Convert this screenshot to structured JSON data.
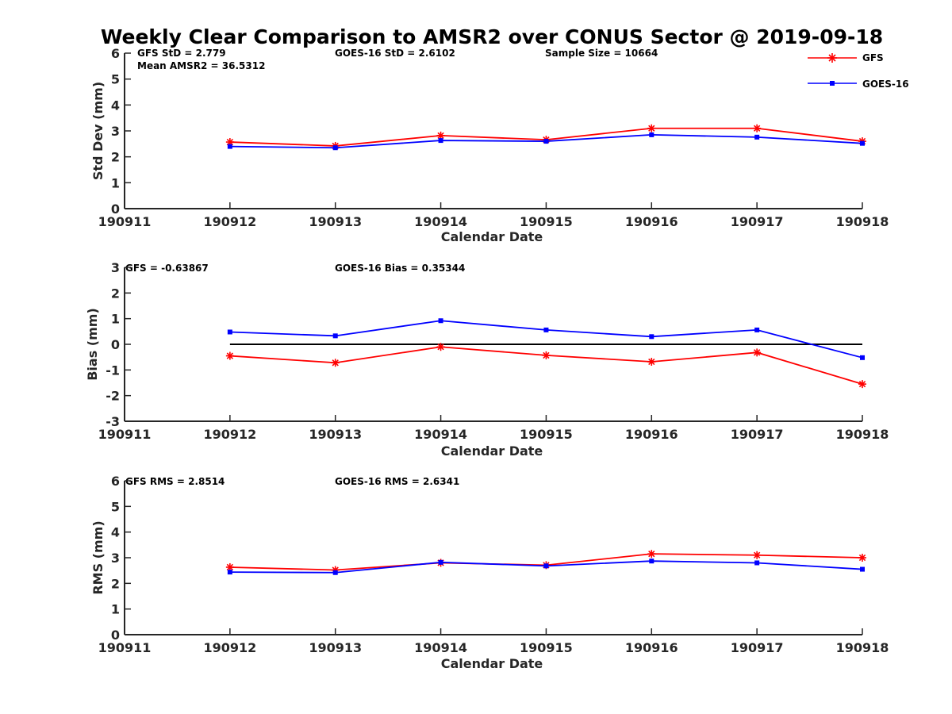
{
  "title": "Weekly Clear Comparison to AMSR2 over CONUS Sector @ 2019-09-18",
  "legend": {
    "position": "top-right",
    "entries": [
      "GFS",
      "GOES-16"
    ]
  },
  "colors": {
    "GFS": "#ff0000",
    "GOES-16": "#0000ff",
    "zero_line": "#000000",
    "axis": "#262626"
  },
  "chart_data": [
    {
      "type": "line",
      "xlabel": "Calendar Date",
      "ylabel": "Std Dev (mm)",
      "x_ticks": [
        "190911",
        "190912",
        "190913",
        "190914",
        "190915",
        "190916",
        "190917",
        "190918"
      ],
      "y_ticks": [
        "0",
        "1",
        "2",
        "3",
        "4",
        "5",
        "6"
      ],
      "ylim": [
        0,
        6
      ],
      "annotations": [
        "GFS StD = 2.779",
        "GOES-16 StD = 2.6102",
        "Sample Size = 10664",
        "Mean AMSR2 = 36.5312"
      ],
      "x": [
        "190912",
        "190913",
        "190914",
        "190915",
        "190916",
        "190917",
        "190918"
      ],
      "series": [
        {
          "name": "GFS",
          "values": [
            2.57,
            2.42,
            2.82,
            2.66,
            3.1,
            3.1,
            2.6
          ]
        },
        {
          "name": "GOES-16",
          "values": [
            2.4,
            2.35,
            2.63,
            2.6,
            2.85,
            2.76,
            2.52
          ]
        }
      ],
      "zero_line": false
    },
    {
      "type": "line",
      "xlabel": "Calendar Date",
      "ylabel": "Bias (mm)",
      "x_ticks": [
        "190911",
        "190912",
        "190913",
        "190914",
        "190915",
        "190916",
        "190917",
        "190918"
      ],
      "y_ticks": [
        "-3",
        "-2",
        "-1",
        "0",
        "1",
        "2",
        "3"
      ],
      "ylim": [
        -3,
        3
      ],
      "annotations": [
        "GFS = -0.63867",
        "GOES-16 Bias  = 0.35344"
      ],
      "x": [
        "190912",
        "190913",
        "190914",
        "190915",
        "190916",
        "190917",
        "190918"
      ],
      "series": [
        {
          "name": "GFS",
          "values": [
            -0.45,
            -0.72,
            -0.1,
            -0.43,
            -0.68,
            -0.32,
            -1.55
          ]
        },
        {
          "name": "GOES-16",
          "values": [
            0.48,
            0.33,
            0.92,
            0.56,
            0.3,
            0.56,
            -0.52
          ]
        }
      ],
      "zero_line": true
    },
    {
      "type": "line",
      "xlabel": "Calendar Date",
      "ylabel": "RMS (mm)",
      "x_ticks": [
        "190911",
        "190912",
        "190913",
        "190914",
        "190915",
        "190916",
        "190917",
        "190918"
      ],
      "y_ticks": [
        "0",
        "1",
        "2",
        "3",
        "4",
        "5",
        "6"
      ],
      "ylim": [
        0,
        6
      ],
      "annotations": [
        "GFS RMS = 2.8514",
        "GOES-16 RMS = 2.6341"
      ],
      "x": [
        "190912",
        "190913",
        "190914",
        "190915",
        "190916",
        "190917",
        "190918"
      ],
      "series": [
        {
          "name": "GFS",
          "values": [
            2.63,
            2.52,
            2.8,
            2.71,
            3.15,
            3.1,
            3.0
          ]
        },
        {
          "name": "GOES-16",
          "values": [
            2.44,
            2.42,
            2.82,
            2.68,
            2.87,
            2.8,
            2.55
          ]
        }
      ],
      "zero_line": false
    }
  ]
}
